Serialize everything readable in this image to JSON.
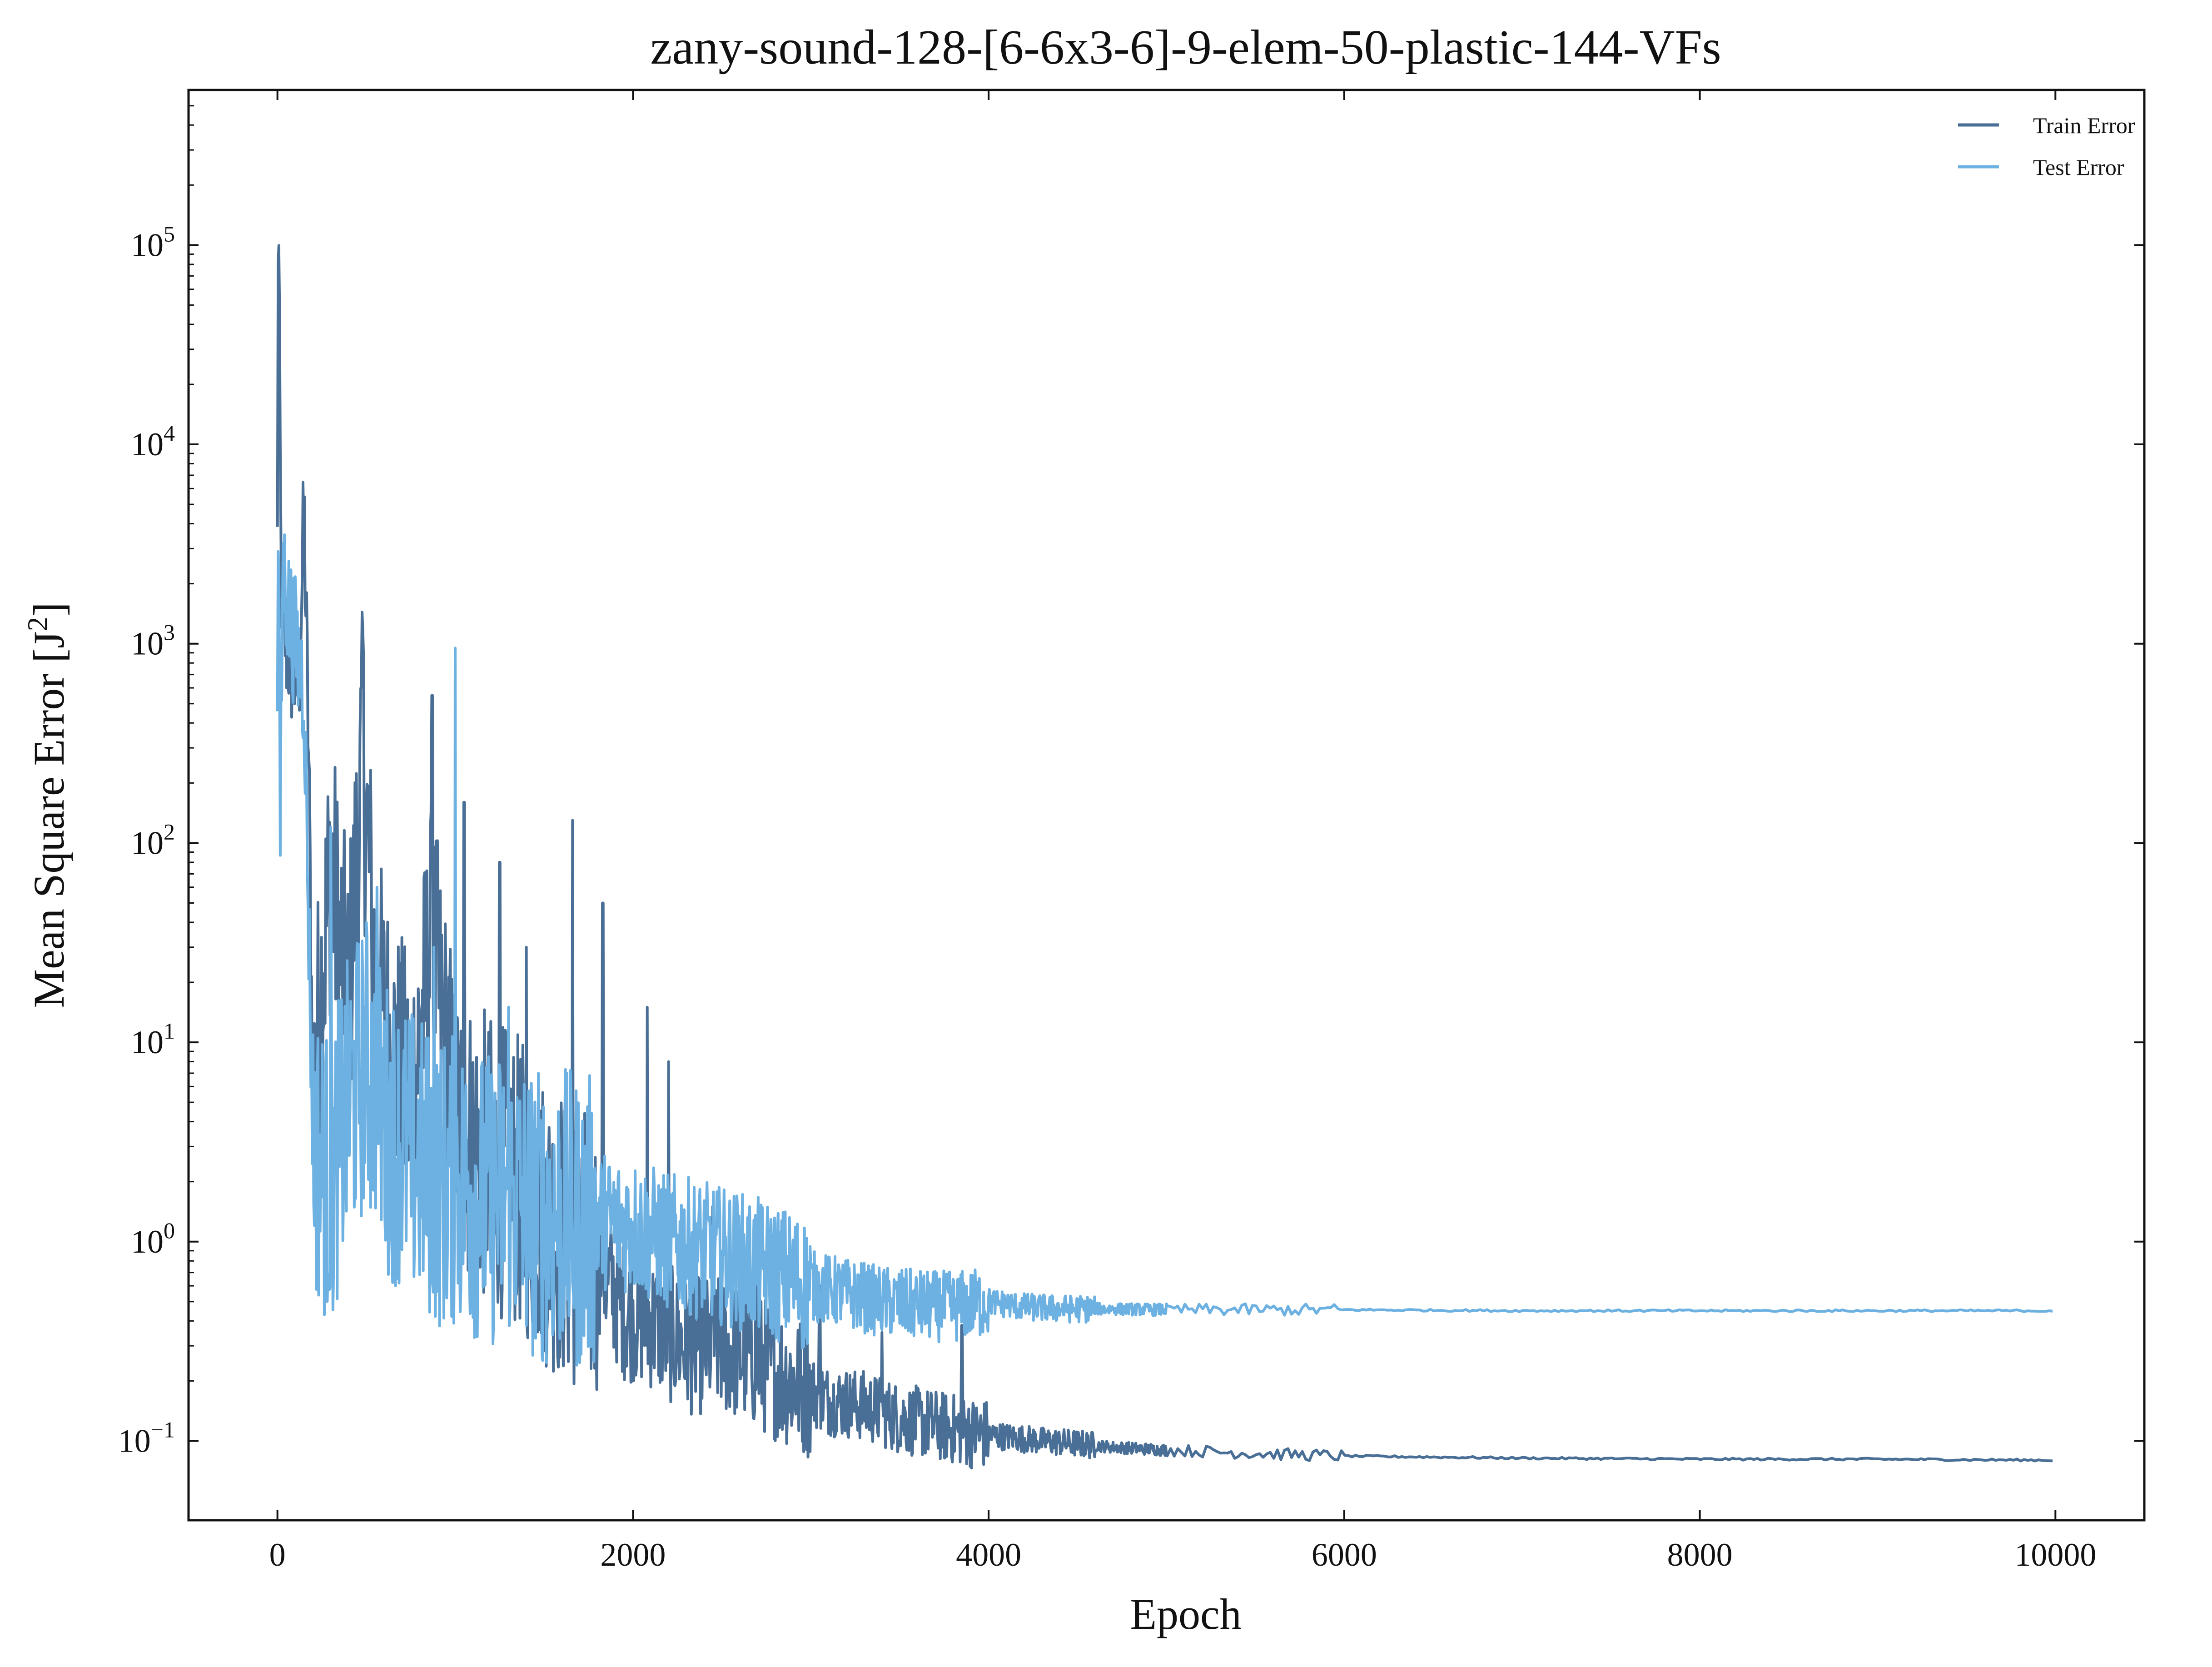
{
  "chart_data": {
    "type": "line",
    "title": "zany-sound-128-[6-6x3-6]-9-elem-50-plastic-144-VFs",
    "xlabel": "Epoch",
    "ylabel_main": "Mean Square Error [J",
    "ylabel_sup": "2",
    "ylabel_close": "]",
    "xlim": [
      -500,
      10500
    ],
    "ylim": [
      0.04,
      600000
    ],
    "yscale": "log",
    "grid": false,
    "legend_position": "top-right",
    "x_ticks": [
      {
        "value": 0,
        "label": "0"
      },
      {
        "value": 2000,
        "label": "2000"
      },
      {
        "value": 4000,
        "label": "4000"
      },
      {
        "value": 6000,
        "label": "6000"
      },
      {
        "value": 8000,
        "label": "8000"
      },
      {
        "value": 10000,
        "label": "10000"
      }
    ],
    "y_ticks": [
      {
        "value": 0.1,
        "base": "10",
        "exp": "−1"
      },
      {
        "value": 1,
        "base": "10",
        "exp": "0"
      },
      {
        "value": 10,
        "base": "10",
        "exp": "1"
      },
      {
        "value": 100,
        "base": "10",
        "exp": "2"
      },
      {
        "value": 1000,
        "base": "10",
        "exp": "3"
      },
      {
        "value": 10000,
        "base": "10",
        "exp": "4"
      },
      {
        "value": 100000,
        "base": "10",
        "exp": "5"
      }
    ],
    "series": [
      {
        "name": "Train Error",
        "color": "#4a6f96",
        "x": [
          0,
          5,
          10,
          20,
          30,
          50,
          80,
          120,
          150,
          175,
          200,
          250,
          300,
          350,
          400,
          480,
          550,
          650,
          750,
          870,
          1000,
          1100,
          1200,
          1350,
          1500,
          1650,
          1800,
          1950,
          2100,
          2300,
          2500,
          2700,
          2900,
          3100,
          3300,
          3500,
          3700,
          3900,
          4100,
          4300,
          4500,
          4700,
          5000,
          5300,
          5600,
          6000,
          6500,
          7000,
          8000,
          9000,
          10000
        ],
        "y": [
          3000,
          280000,
          35000,
          2500,
          1500,
          1000,
          800,
          600,
          4500,
          300,
          5,
          20,
          80,
          30,
          15,
          300,
          20,
          8,
          5,
          30,
          4,
          3,
          2.5,
          2,
          1.3,
          1.0,
          0.8,
          0.45,
          0.4,
          0.3,
          0.3,
          0.25,
          0.2,
          0.16,
          0.15,
          0.13,
          0.12,
          0.11,
          0.105,
          0.1,
          0.097,
          0.093,
          0.09,
          0.088,
          0.086,
          0.084,
          0.083,
          0.082,
          0.081,
          0.081,
          0.08
        ],
        "spikes": [
          {
            "x": 480,
            "y": 1200
          },
          {
            "x": 870,
            "y": 550
          },
          {
            "x": 1050,
            "y": 160
          },
          {
            "x": 1250,
            "y": 80
          },
          {
            "x": 1400,
            "y": 30
          },
          {
            "x": 1660,
            "y": 130
          },
          {
            "x": 1830,
            "y": 50
          },
          {
            "x": 2080,
            "y": 15
          },
          {
            "x": 2200,
            "y": 8
          },
          {
            "x": 2450,
            "y": 1.5
          },
          {
            "x": 2700,
            "y": 1.0
          },
          {
            "x": 3050,
            "y": 0.6
          },
          {
            "x": 3400,
            "y": 0.35
          },
          {
            "x": 3850,
            "y": 0.38
          }
        ]
      },
      {
        "name": "Test Error",
        "color": "#6cb1e1",
        "x": [
          0,
          5,
          15,
          30,
          60,
          100,
          150,
          200,
          300,
          400,
          500,
          600,
          700,
          800,
          900,
          1000,
          1100,
          1200,
          1300,
          1400,
          1500,
          1600,
          1700,
          1800,
          2000,
          2200,
          2400,
          2600,
          2800,
          3000,
          3200,
          3400,
          3600,
          3800,
          4000,
          4200,
          4400,
          4600,
          5000,
          5500,
          6000,
          7000,
          8000,
          9000,
          10000
        ],
        "y": [
          300,
          8000,
          90,
          2500,
          1500,
          1000,
          600,
          3,
          2,
          5,
          8,
          4,
          3,
          2.5,
          2,
          2,
          1.8,
          1.6,
          1.8,
          1.5,
          1.3,
          1.4,
          1.2,
          1.3,
          1.2,
          1.0,
          0.9,
          0.8,
          0.7,
          0.6,
          0.55,
          0.5,
          0.48,
          0.47,
          0.5,
          0.47,
          0.46,
          0.46,
          0.455,
          0.455,
          0.455,
          0.45,
          0.45,
          0.45,
          0.45
        ],
        "spikes": [
          {
            "x": 1000,
            "y": 950
          },
          {
            "x": 300,
            "y": 120
          },
          {
            "x": 560,
            "y": 60
          },
          {
            "x": 880,
            "y": 30
          },
          {
            "x": 1300,
            "y": 15
          },
          {
            "x": 350,
            "y": 0.35
          },
          {
            "x": 250,
            "y": 0.35
          },
          {
            "x": 20,
            "y": 80
          }
        ]
      }
    ]
  }
}
